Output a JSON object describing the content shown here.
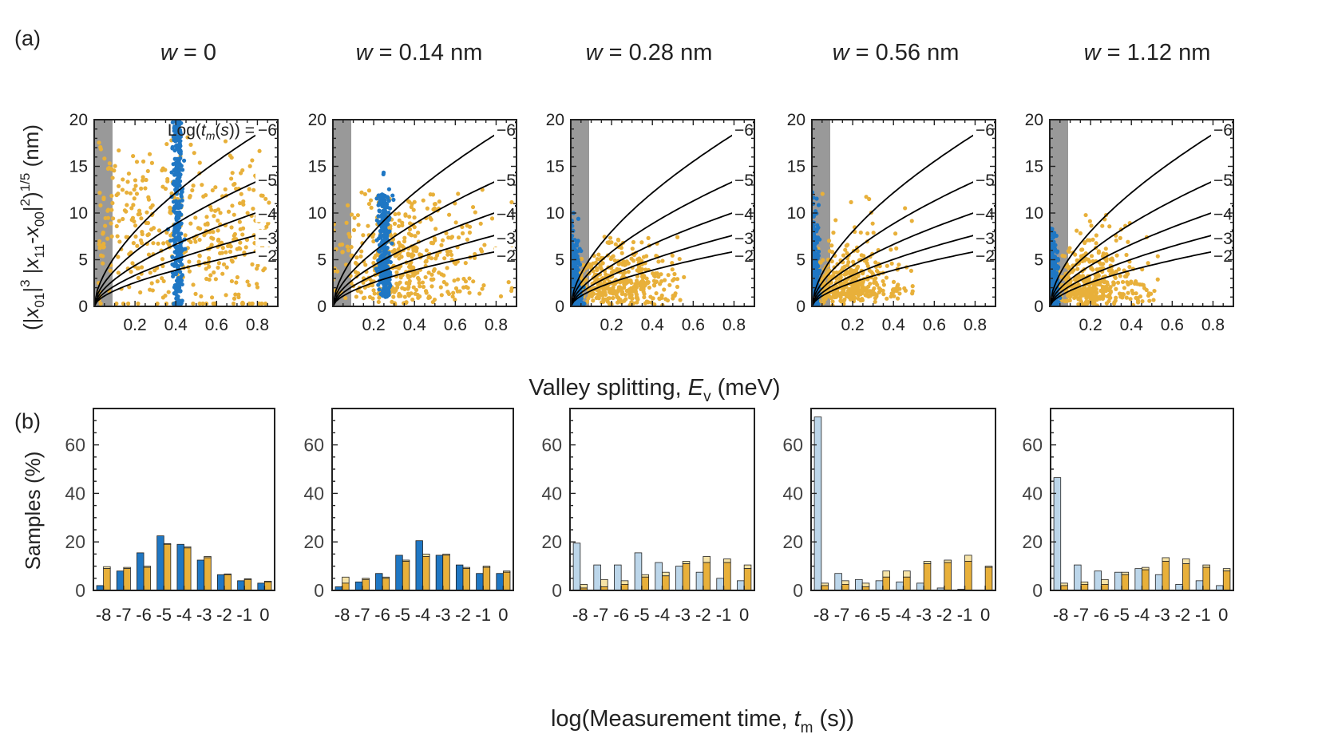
{
  "chart_data": {
    "type": "scatter+bar",
    "panel_labels": {
      "a": "(a)",
      "b": "(b)"
    },
    "colors": {
      "blue": "#1f77c4",
      "light_blue": "#bcd6ea",
      "orange": "#e8b03a",
      "light_orange": "#f6e3a6",
      "gray": "#999999",
      "curve": "#000000"
    },
    "scatter": {
      "ylabel": "(|x01|³ |x11-x00|²)^1/5 (nm)",
      "ylabel_parts": {
        "open": "(|",
        "x01_base": "x",
        "x01_sub": "01",
        "pipe_close1": "|",
        "exp3": "3",
        "mid_open": " |",
        "x11_base": "x",
        "x11_sub": "11",
        "minus": "-",
        "x00_base": "x",
        "x00_sub": "00",
        "pipe_close2": "|",
        "exp2": "2",
        "close": ")",
        "exp15": "1/5",
        "unit": " (nm)"
      },
      "xlabel_parts": {
        "text": "Valley splitting, ",
        "symbol": "E",
        "sub": "v",
        "unit": " (meV)"
      },
      "xlim": [
        0,
        0.9
      ],
      "ylim": [
        0,
        20
      ],
      "xticks": [
        "0.2",
        "0.4",
        "0.6",
        "0.8"
      ],
      "yticks": [
        "0",
        "5",
        "10",
        "15",
        "20"
      ],
      "shaded_xrange": [
        0,
        0.09
      ],
      "curve_label_prefix": "Log(tm(s)) = ",
      "curve_label_prefix_parts": {
        "pre": "Log(",
        "t": "t",
        "m": "m",
        "mid": "(",
        "s": "s",
        "post": ")) = "
      },
      "curves": [
        {
          "label": "−6",
          "y_at_0_9": 19.8
        },
        {
          "label": "−5",
          "y_at_0_9": 14.4
        },
        {
          "label": "−4",
          "y_at_0_9": 10.8
        },
        {
          "label": "−3",
          "y_at_0_9": 8.2
        },
        {
          "label": "−2",
          "y_at_0_9": 6.3
        }
      ],
      "panels": [
        {
          "w_label": "w",
          "w_value": " = 0",
          "blue_center": 0.41,
          "blue_spread": 0.012,
          "blue_ymax": 20,
          "orange_xmax": 0.86,
          "orange_ymax": 19.5,
          "orange_mode": 0.4,
          "orange_ymode": 8
        },
        {
          "w_label": "w",
          "w_value": " = 0.14 nm",
          "blue_center": 0.25,
          "blue_spread": 0.015,
          "blue_ymax": 16.5,
          "orange_xmax": 0.9,
          "orange_ymax": 12.5,
          "orange_mode": 0.32,
          "orange_ymode": 4
        },
        {
          "w_label": "w",
          "w_value": " = 0.28 nm",
          "blue_center": 0.012,
          "blue_spread": 0.02,
          "blue_ymax": 10,
          "orange_xmax": 0.58,
          "orange_ymax": 7.5,
          "orange_mode": 0.22,
          "orange_ymode": 1.5
        },
        {
          "w_label": "w",
          "w_value": " = 0.56 nm",
          "blue_center": 0.01,
          "blue_spread": 0.012,
          "blue_ymax": 13,
          "orange_xmax": 0.5,
          "orange_ymax": 13,
          "orange_mode": 0.18,
          "orange_ymode": 1.5
        },
        {
          "w_label": "w",
          "w_value": " = 1.12 nm",
          "blue_center": 0.012,
          "blue_spread": 0.015,
          "blue_ymax": 10,
          "orange_xmax": 0.55,
          "orange_ymax": 10,
          "orange_mode": 0.2,
          "orange_ymode": 1.5
        }
      ]
    },
    "bars": {
      "ylabel": "Samples (%)",
      "xlabel_parts": {
        "text": "log(Measurement time, ",
        "symbol": "t",
        "sub": "m",
        "unit": " (s))"
      },
      "ylim": [
        0,
        75
      ],
      "yticks": [
        "0",
        "20",
        "40",
        "60"
      ],
      "categories": [
        "-8",
        "-7",
        "-6",
        "-5",
        "-4",
        "-3",
        "-2",
        "-1",
        "0"
      ],
      "panels": [
        {
          "blue_light": false,
          "blue": [
            2,
            8,
            15.5,
            22.5,
            19,
            12.5,
            6.5,
            4,
            3
          ],
          "blue_cap": [
            0,
            0,
            0,
            0,
            0,
            0,
            0,
            0,
            0
          ],
          "orange": [
            9,
            9,
            9.5,
            19,
            17.5,
            13.5,
            6.5,
            4.5,
            3.5
          ],
          "orange_cap": [
            0.8,
            0.5,
            0.5,
            0.3,
            0.5,
            0.5,
            0.3,
            0.3,
            0.3
          ]
        },
        {
          "blue_light": false,
          "blue": [
            1.5,
            3.5,
            7,
            14.5,
            20.5,
            14.5,
            10.5,
            7,
            7
          ],
          "blue_cap": [
            0,
            0,
            0,
            0,
            0,
            0,
            0,
            0,
            0
          ],
          "orange": [
            3,
            4.5,
            5,
            12,
            14,
            14.5,
            9,
            9.5,
            7.5
          ],
          "orange_cap": [
            2.5,
            0.5,
            0.5,
            0.5,
            1,
            0.5,
            0.5,
            0.5,
            0.5
          ]
        },
        {
          "blue_light": true,
          "blue": [
            19.5,
            10.5,
            10.5,
            15.5,
            11.5,
            10,
            7.5,
            5,
            4
          ],
          "blue_cap": [
            0,
            0,
            0,
            0,
            0,
            0,
            0,
            0,
            0
          ],
          "orange": [
            1,
            1.5,
            2.5,
            5.5,
            6,
            11,
            11.5,
            11.5,
            9
          ],
          "orange_cap": [
            1.5,
            3,
            1.5,
            1,
            1.5,
            1,
            2.5,
            1.5,
            1.5
          ]
        },
        {
          "blue_light": true,
          "blue": [
            71.5,
            7,
            4.5,
            4,
            3.5,
            3,
            1,
            0.5,
            0
          ],
          "blue_cap": [
            0,
            0,
            0,
            0,
            0,
            0,
            0,
            0,
            0
          ],
          "orange": [
            2,
            2.5,
            1.5,
            5.5,
            5.5,
            11,
            11.5,
            12,
            9.5
          ],
          "orange_cap": [
            1,
            1.5,
            1.5,
            2.5,
            2.5,
            1,
            1,
            2.5,
            0.5
          ]
        },
        {
          "blue_light": true,
          "blue": [
            46.5,
            10.5,
            8,
            7.5,
            9,
            6.5,
            2.5,
            4,
            2
          ],
          "blue_cap": [
            0,
            0,
            0,
            0,
            0,
            0,
            0,
            0,
            0
          ],
          "orange": [
            2,
            2.5,
            2.5,
            6.5,
            8.5,
            12,
            11,
            9.5,
            8
          ],
          "orange_cap": [
            1,
            1,
            2,
            1,
            1,
            1.5,
            2,
            1,
            1
          ]
        }
      ]
    }
  }
}
